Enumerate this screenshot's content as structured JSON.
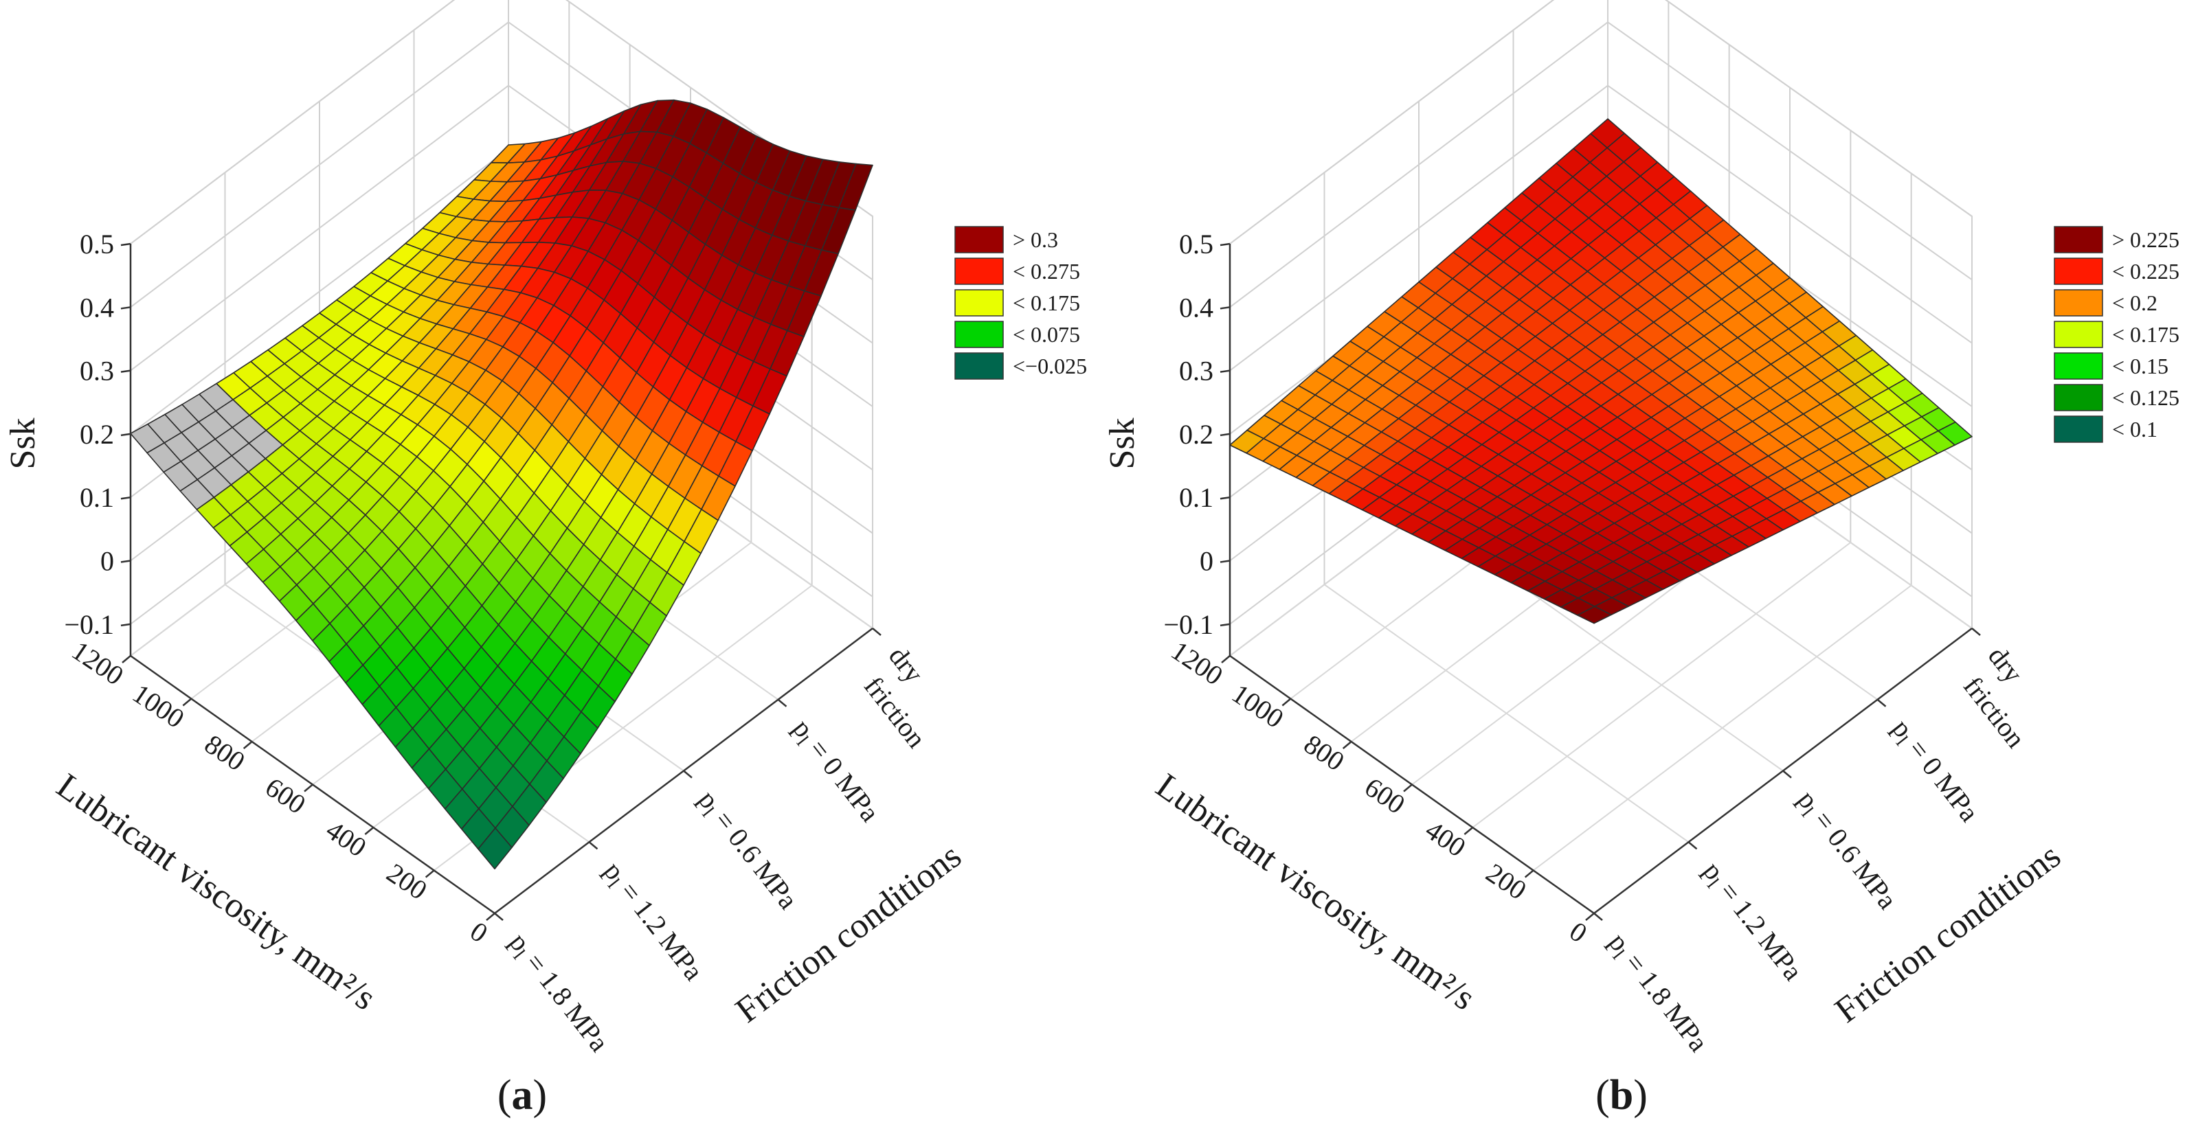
{
  "chart_data": [
    {
      "type": "surface3d",
      "panel": "a",
      "zlabel": "Ssk",
      "xlabel": "Lubricant viscosity, mm²/s",
      "ylabel": "Friction conditions",
      "z_ticks": [
        "0.5",
        "0.4",
        "0.3",
        "0.2",
        "0.1",
        "0",
        "−0.1"
      ],
      "z_values": [
        0.5,
        0.4,
        0.3,
        0.2,
        0.1,
        0,
        -0.1
      ],
      "zlim": [
        -0.15,
        0.5
      ],
      "x_ticks": [
        "1200",
        "1000",
        "800",
        "600",
        "400",
        "200",
        "0"
      ],
      "x_values": [
        1200,
        1000,
        800,
        600,
        400,
        200,
        0
      ],
      "y_categories": [
        "p_l = 1.8 MPa",
        "p_l = 1.2 MPa",
        "p_l = 0.6 MPa",
        "p_l = 0 MPa",
        "dry friction"
      ],
      "y_tick_labels": [
        {
          "p": "p",
          "sub": "l",
          "rest": " = 1.8 MPa"
        },
        {
          "p": "p",
          "sub": "l",
          "rest": " = 1.2 MPa"
        },
        {
          "p": "p",
          "sub": "l",
          "rest": " = 0.6 MPa"
        },
        {
          "p": "p",
          "sub": "l",
          "rest": " = 0 MPa"
        }
      ],
      "y_last_label_line1": "dry",
      "y_last_label_line2": "friction",
      "legend": [
        {
          "label": "> 0.3",
          "color": "#9b0000"
        },
        {
          "label": "< 0.275",
          "color": "#ff1a00"
        },
        {
          "label": "< 0.175",
          "color": "#e8ff00"
        },
        {
          "label": "< 0.075",
          "color": "#00d400"
        },
        {
          "label": "<−0.025",
          "color": "#00664d"
        }
      ],
      "surface_note": "Ssk peaks near dry friction at mid viscosity (~0.48) and drops to ~-0.08 at p_l = 1.8 MPa with low viscosity; values above 0.175 near (1200, 1.8 MPa) shown grey"
    },
    {
      "type": "surface3d",
      "panel": "b",
      "zlabel": "Ssk",
      "xlabel": "Lubricant viscosity, mm²/s",
      "ylabel": "Friction conditions",
      "z_ticks": [
        "0.5",
        "0.4",
        "0.3",
        "0.2",
        "0.1",
        "0",
        "−0.1"
      ],
      "z_values": [
        0.5,
        0.4,
        0.3,
        0.2,
        0.1,
        0,
        -0.1
      ],
      "zlim": [
        -0.15,
        0.5
      ],
      "x_ticks": [
        "1200",
        "1000",
        "800",
        "600",
        "400",
        "200",
        "0"
      ],
      "x_values": [
        1200,
        1000,
        800,
        600,
        400,
        200,
        0
      ],
      "y_categories": [
        "p_l = 1.8 MPa",
        "p_l = 1.2 MPa",
        "p_l = 0.6 MPa",
        "p_l = 0 MPa",
        "dry friction"
      ],
      "y_tick_labels": [
        {
          "p": "p",
          "sub": "l",
          "rest": " = 1.8 MPa"
        },
        {
          "p": "p",
          "sub": "l",
          "rest": " = 1.2 MPa"
        },
        {
          "p": "p",
          "sub": "l",
          "rest": " = 0.6 MPa"
        },
        {
          "p": "p",
          "sub": "l",
          "rest": " = 0 MPa"
        }
      ],
      "y_last_label_line1": "dry",
      "y_last_label_line2": "friction",
      "legend": [
        {
          "label": "> 0.225",
          "color": "#8b0000"
        },
        {
          "label": "< 0.225",
          "color": "#ff1a00"
        },
        {
          "label": "< 0.2",
          "color": "#ff8c00"
        },
        {
          "label": "< 0.175",
          "color": "#ccff00"
        },
        {
          "label": "< 0.15",
          "color": "#00e000"
        },
        {
          "label": "< 0.125",
          "color": "#009a00"
        },
        {
          "label": "< 0.1",
          "color": "#00664d"
        }
      ],
      "surface_note": "Saddle-shaped surface ranging ~0.1 to ~0.3; highest at dry friction / 1200 and at 1.8 MPa / 0"
    }
  ],
  "captions": {
    "a": "a",
    "b": "b"
  }
}
